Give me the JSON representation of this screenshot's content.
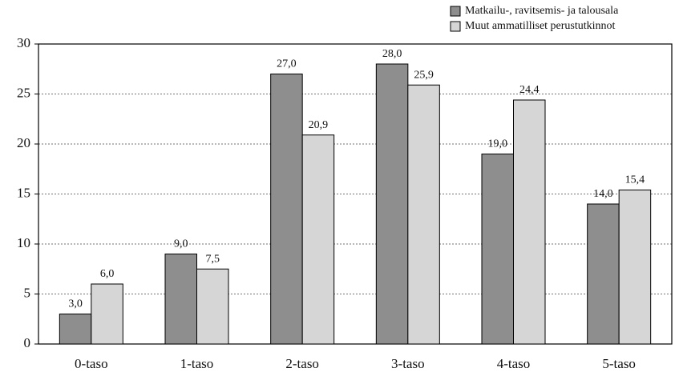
{
  "chart_data": {
    "type": "bar",
    "categories": [
      "0-taso",
      "1-taso",
      "2-taso",
      "3-taso",
      "4-taso",
      "5-taso"
    ],
    "series": [
      {
        "name": "Matkailu-, ravitsemis- ja talousala",
        "color": "#8e8e8e",
        "values": [
          3.0,
          9.0,
          27.0,
          28.0,
          19.0,
          14.0
        ],
        "value_labels": [
          "3,0",
          "9,0",
          "27,0",
          "28,0",
          "19,0",
          "14,0"
        ]
      },
      {
        "name": "Muut ammatilliset perustutkinnot",
        "color": "#d6d6d6",
        "values": [
          6.0,
          7.5,
          20.9,
          25.9,
          24.4,
          15.4
        ],
        "value_labels": [
          "6,0",
          "7,5",
          "20,9",
          "25,9",
          "24,4",
          "15,4"
        ]
      }
    ],
    "ylim": [
      0,
      30
    ],
    "yticks": [
      0,
      5,
      10,
      15,
      20,
      25,
      30
    ],
    "grid": true,
    "legend": "top-right"
  }
}
